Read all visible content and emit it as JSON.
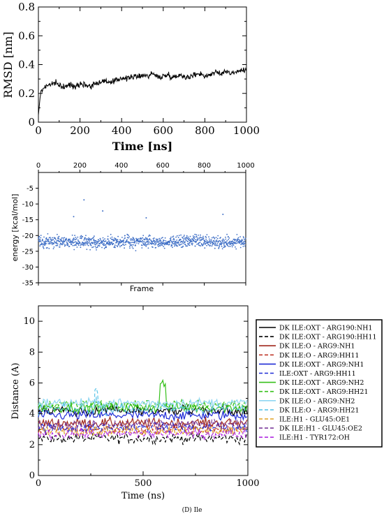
{
  "caption": "(D) Ile",
  "chart_data": [
    {
      "id": "rmsd",
      "type": "line",
      "xlabel": "Time [ns]",
      "ylabel": "RMSD [nm]",
      "xlim": [
        0,
        1000
      ],
      "ylim": [
        0,
        0.8
      ],
      "xticks": [
        "0",
        "200",
        "400",
        "600",
        "800",
        "1000"
      ],
      "yticks": [
        "0",
        "0.2",
        "0.4",
        "0.6",
        "0.8"
      ],
      "grid": false,
      "color": "#000000",
      "series": [
        {
          "x": [
            0,
            10,
            25,
            50,
            75,
            100,
            125,
            150,
            175,
            200,
            225,
            250,
            275,
            300,
            325,
            350,
            375,
            400,
            425,
            450,
            475,
            500,
            525,
            550,
            575,
            600,
            625,
            650,
            675,
            700,
            725,
            750,
            775,
            800,
            825,
            850,
            875,
            900,
            925,
            950,
            975,
            1000
          ],
          "y": [
            0.05,
            0.2,
            0.24,
            0.26,
            0.27,
            0.26,
            0.24,
            0.26,
            0.25,
            0.27,
            0.26,
            0.25,
            0.27,
            0.28,
            0.29,
            0.27,
            0.29,
            0.31,
            0.3,
            0.32,
            0.31,
            0.33,
            0.32,
            0.34,
            0.31,
            0.32,
            0.33,
            0.31,
            0.33,
            0.32,
            0.31,
            0.33,
            0.34,
            0.32,
            0.33,
            0.35,
            0.33,
            0.36,
            0.34,
            0.35,
            0.36,
            0.36
          ]
        }
      ]
    },
    {
      "id": "energy",
      "type": "scatter",
      "xlabel": "Frame",
      "ylabel": "energy [kcal/mol]",
      "xlim": [
        0,
        1000
      ],
      "ylim": [
        -35,
        0
      ],
      "xticks": [
        "0",
        "200",
        "400",
        "600",
        "800",
        "1000"
      ],
      "yticks": [
        "-5",
        "-10",
        "-15",
        "-20",
        "-25",
        "-30",
        "-35"
      ],
      "x_axis_position": "top",
      "grid": false,
      "color": "#3f6fc6",
      "mean_energy": -22,
      "notable_points": [
        {
          "x": 220,
          "y": -8.7
        },
        {
          "x": 310,
          "y": -12.2
        },
        {
          "x": 890,
          "y": -13.3
        },
        {
          "x": 170,
          "y": -14.0
        },
        {
          "x": 520,
          "y": -14.4
        }
      ]
    },
    {
      "id": "distance",
      "type": "line",
      "xlabel": "Time (ns)",
      "ylabel": "Distance (A)",
      "xlim": [
        0,
        1000
      ],
      "ylim": [
        0,
        11
      ],
      "xticks": [
        "0",
        "500",
        "1000"
      ],
      "yticks": [
        "0",
        "2",
        "4",
        "6",
        "8",
        "10"
      ],
      "legend": "right",
      "grid": false,
      "series": [
        {
          "name": "DK ILE:OXT - ARG190:NH1",
          "color": "#000000",
          "dash": "solid",
          "mean": 4.2
        },
        {
          "name": "DK ILE:OXT - ARG190:HH11",
          "color": "#000000",
          "dash": "dashed",
          "mean": 2.4
        },
        {
          "name": "DK ILE:O - ARG9:NH1",
          "color": "#a0281c",
          "dash": "solid",
          "mean": 3.4
        },
        {
          "name": "DK ILE:O - ARG9:HH11",
          "color": "#c0392b",
          "dash": "dashed",
          "mean": 3.0
        },
        {
          "name": "DK ILE:OXT - ARG9:NH1",
          "color": "#1f2bd6",
          "dash": "solid",
          "mean": 3.9
        },
        {
          "name": "ILE:OXT - ARG9:HH11",
          "color": "#1f2bd6",
          "dash": "dashed",
          "mean": 3.1
        },
        {
          "name": "DK ILE:OXT - ARG9:NH2",
          "color": "#35c01a",
          "dash": "solid",
          "mean": 4.4
        },
        {
          "name": "DK ILE:OXT - ARG9:HH21",
          "color": "#35c01a",
          "dash": "dashed",
          "mean": 4.6
        },
        {
          "name": "DK ILE:O - ARG9:NH2",
          "color": "#8fd6f2",
          "dash": "solid",
          "mean": 4.7
        },
        {
          "name": "DK ILE:O - ARG9:HH21",
          "color": "#5bc4e8",
          "dash": "dashed",
          "mean": 4.3
        },
        {
          "name": "ILE:H1 - GLU45:OE1",
          "color": "#e0a020",
          "dash": "dashed",
          "mean": 2.9
        },
        {
          "name": "DK ILE:H1 - GLU45:OE2",
          "color": "#7a3a9a",
          "dash": "dashed",
          "mean": 3.3
        },
        {
          "name": "ILE:H1 - TYR172:OH",
          "color": "#b02ce0",
          "dash": "dashed",
          "mean": 2.7
        }
      ]
    }
  ]
}
